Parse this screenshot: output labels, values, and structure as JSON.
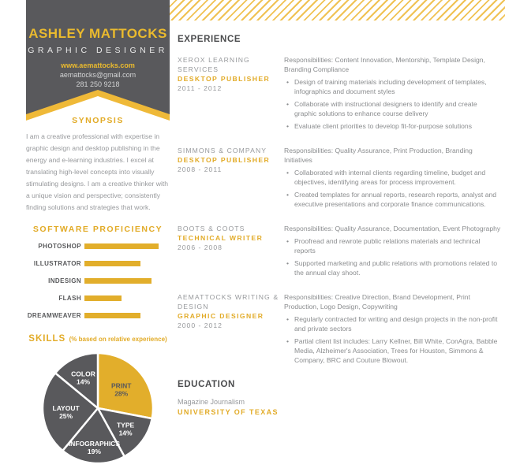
{
  "colors": {
    "accent_yellow": "#e2ab27",
    "banner_yellow": "#efb938",
    "banner_gray": "#59595c",
    "heading_dark": "#4b4c4e",
    "body_gray": "#8a8c8e"
  },
  "sidebar": {
    "name": "ASHLEY MATTOCKS",
    "role": "GRAPHIC DESIGNER",
    "website": "www.aemattocks.com",
    "email": "aemattocks@gmail.com",
    "phone": "281 250 9218",
    "synopsis_title": "SYNOPSIS",
    "synopsis": "I am a creative professional with expertise in graphic design and desktop publishing in the energy and e-learning industries. I excel at translating high-level concepts into visually stimulating designs. I am a creative thinker with a unique vision and perspective; consistently finding solutions and strategies that work."
  },
  "chart_data": [
    {
      "type": "bar",
      "title": "SOFTWARE PROFICIENCY",
      "orientation": "horizontal",
      "categories": [
        "PHOTOSHOP",
        "ILLUSTRATOR",
        "INDESIGN",
        "FLASH",
        "DREAMWEAVER"
      ],
      "values": [
        100,
        76,
        90,
        50,
        75
      ],
      "value_note": "relative bar lengths, percent of longest bar",
      "bar_color": "#e2ae2b",
      "grid": false,
      "legend": false
    },
    {
      "type": "pie",
      "title": "SKILLS",
      "subtitle": "(% based on relative experience)",
      "categories": [
        "PRINT",
        "TYPE",
        "INFOGRAPHICS",
        "LAYOUT",
        "COLOR"
      ],
      "values": [
        28,
        14,
        19,
        25,
        14
      ],
      "slice_colors": [
        "#e2ae2b",
        "#59595c",
        "#59595c",
        "#59595c",
        "#59595c"
      ],
      "label_colors": [
        "#59595c",
        "#ffffff",
        "#ffffff",
        "#ffffff",
        "#ffffff"
      ],
      "labels": [
        "PRINT 28%",
        "TYPE 14%",
        "INFOGRAPHICS 19%",
        "LAYOUT 25%",
        "COLOR 14%"
      ],
      "start_angle": "top, clockwise",
      "separator": "white"
    }
  ],
  "main": {
    "experience_title": "EXPERIENCE",
    "jobs": [
      {
        "company": "XEROX LEARNING SERVICES",
        "title": "DESKTOP PUBLISHER",
        "dates": "2011 - 2012",
        "responsibilities": "Responsibilities: Content Innovation, Mentorship, Template Design, Branding Compliance",
        "bullets": [
          "Design of training materials including development of templates, infographics and document styles",
          "Collaborate with instructional designers to identify and create graphic solutions to enhance course delivery",
          "Evaluate client priorities to develop fit-for-purpose solutions"
        ]
      },
      {
        "company": "SIMMONS & COMPANY",
        "title": "DESKTOP PUBLISHER",
        "dates": "2008 - 2011",
        "responsibilities": "Responsibilities: Quality Assurance, Print Production, Branding Initiatives",
        "bullets": [
          "Collaborated with internal clients regarding timeline, budget and objectives, identifying areas for process improvement.",
          "Created templates for annual reports, research reports, analyst and executive presentations and corporate finance communications."
        ]
      },
      {
        "company": "BOOTS & COOTS",
        "title": "TECHNICAL WRITER",
        "dates": "2006 - 2008",
        "responsibilities": "Responsibilities: Quality Assurance, Documentation, Event Photography",
        "bullets": [
          "Proofread and rewrote public relations materials and technical reports",
          "Supported marketing and public relations with promotions related to the annual clay shoot."
        ]
      },
      {
        "company": "AEMATTOCKS WRITING & DESIGN",
        "title": "GRAPHIC DESIGNER",
        "dates": "2000 - 2012",
        "responsibilities": "Responsibilities: Creative Direction, Brand Development, Print Production, Logo Design, Copywriting",
        "bullets": [
          "Regularly contracted for writing and design projects in the non-profit and private sectors",
          "Partial client list includes: Larry Kellner, Bill White, ConAgra, Babble Media, Alzheimer's Association, Trees for Houston, Simmons & Company, BRC and Couture Blowout."
        ]
      }
    ],
    "education_title": "EDUCATION",
    "education": {
      "degree": "Magazine Journalism",
      "school": "UNIVERSITY OF TEXAS"
    }
  }
}
